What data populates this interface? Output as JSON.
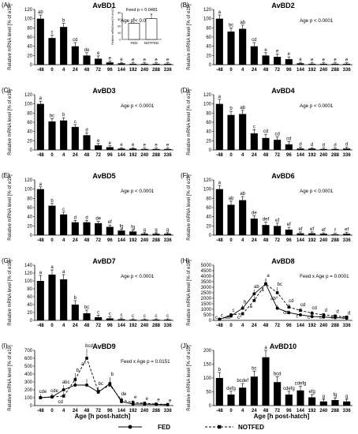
{
  "figure": {
    "x_axis_label": "Age [h post-hatch]",
    "legend": {
      "fed": "FED",
      "notfed": "NOTFED"
    }
  },
  "chart_data": [
    {
      "type": "bar",
      "panel_label": "(A)",
      "title": "AvBD1",
      "ylabel": "Relative mRNA level [% of e19]",
      "ylim": [
        0,
        120
      ],
      "yticks": [
        "0",
        "20",
        "40",
        "60",
        "80",
        "100",
        "120"
      ],
      "categories": [
        "-48",
        "0",
        "4",
        "24",
        "48",
        "72",
        "96",
        "144",
        "192",
        "240",
        "288",
        "336"
      ],
      "values": [
        100,
        58,
        82,
        40,
        20,
        13,
        5,
        3,
        2,
        2,
        2,
        2
      ],
      "errors": [
        8,
        6,
        8,
        8,
        6,
        6,
        3,
        2,
        2,
        2,
        2,
        2
      ],
      "letters": [
        "ab",
        "c",
        "b",
        "cd",
        "de",
        "e",
        "e",
        "e",
        "e",
        "e",
        "e",
        "e"
      ],
      "stat": "Age p < 0.0001",
      "inset": {
        "type": "bar",
        "title": "Feed p < 0.0481",
        "ylabel": "Relative mRNA level [% of e19]",
        "ylim": [
          0,
          40
        ],
        "yticks": [
          "0",
          "10",
          "20",
          "30",
          "40"
        ],
        "categories": [
          "FED",
          "NOTFED"
        ],
        "values": [
          24,
          31
        ],
        "errors": [
          3,
          4
        ],
        "letters": [
          "b",
          "a"
        ]
      }
    },
    {
      "type": "bar",
      "panel_label": "(B)",
      "title": "AvBD2",
      "ylabel": "Relative mRNA level [% of e19]",
      "ylim": [
        0,
        120
      ],
      "yticks": [
        "0",
        "20",
        "40",
        "60",
        "80",
        "100",
        "120"
      ],
      "categories": [
        "-48",
        "0",
        "4",
        "24",
        "48",
        "72",
        "96",
        "144",
        "192",
        "240",
        "288",
        "336"
      ],
      "values": [
        100,
        72,
        78,
        40,
        20,
        17,
        12,
        3,
        2,
        2,
        2,
        2
      ],
      "errors": [
        8,
        8,
        8,
        8,
        6,
        6,
        5,
        2,
        2,
        2,
        2,
        2
      ],
      "letters": [
        "a",
        "bc",
        "ab",
        "cd",
        "e",
        "e",
        "e",
        "e",
        "e",
        "e",
        "e",
        "e"
      ],
      "stat": "Age p < 0.0001"
    },
    {
      "type": "bar",
      "panel_label": "(C)",
      "title": "AvBD3",
      "ylabel": "Relative mRNA level [% of e19]",
      "ylim": [
        0,
        120
      ],
      "yticks": [
        "0",
        "20",
        "40",
        "60",
        "80",
        "100",
        "120"
      ],
      "categories": [
        "-48",
        "0",
        "4",
        "24",
        "48",
        "72",
        "96",
        "144",
        "192",
        "240",
        "288",
        "336"
      ],
      "values": [
        100,
        62,
        64,
        50,
        32,
        10,
        6,
        3,
        3,
        2,
        2,
        2
      ],
      "errors": [
        6,
        6,
        6,
        5,
        5,
        4,
        3,
        2,
        2,
        2,
        2,
        2
      ],
      "letters": [
        "a",
        "bc",
        "b",
        "c",
        "d",
        "e",
        "e",
        "e",
        "e",
        "e",
        "e",
        "e"
      ],
      "stat": "Age p < 0.0001"
    },
    {
      "type": "bar",
      "panel_label": "(D)",
      "title": "AvBD4",
      "ylabel": "Relative mRNA level [% of e19]",
      "ylim": [
        0,
        120
      ],
      "yticks": [
        "0",
        "20",
        "40",
        "60",
        "80",
        "100",
        "120"
      ],
      "categories": [
        "-48",
        "0",
        "4",
        "24",
        "48",
        "72",
        "96",
        "144",
        "192",
        "240",
        "288",
        "336"
      ],
      "values": [
        100,
        76,
        78,
        36,
        26,
        22,
        12,
        3,
        3,
        2,
        2,
        3
      ],
      "errors": [
        10,
        8,
        8,
        8,
        8,
        6,
        6,
        3,
        2,
        2,
        2,
        3
      ],
      "letters": [
        "a",
        "b",
        "ab",
        "c",
        "cd",
        "cd",
        "cd",
        "d",
        "d",
        "d",
        "d",
        "d"
      ],
      "stat": "Age p < 0.0001"
    },
    {
      "type": "bar",
      "panel_label": "(E)",
      "title": "AvBD5",
      "ylabel": "Relative mRNA level [% of e19]",
      "ylim": [
        0,
        120
      ],
      "yticks": [
        "0",
        "20",
        "40",
        "60",
        "80",
        "100",
        "120"
      ],
      "categories": [
        "-48",
        "0",
        "4",
        "24",
        "48",
        "72",
        "96",
        "144",
        "192",
        "240",
        "288",
        "336"
      ],
      "values": [
        100,
        64,
        45,
        28,
        28,
        26,
        18,
        10,
        8,
        3,
        3,
        3
      ],
      "errors": [
        5,
        5,
        5,
        4,
        4,
        4,
        4,
        3,
        3,
        2,
        2,
        2
      ],
      "letters": [
        "a",
        "b",
        "c",
        "d",
        "d",
        "de",
        "ef",
        "fg",
        "fg",
        "g",
        "g",
        "g"
      ],
      "stat": "Age p < 0.0001"
    },
    {
      "type": "bar",
      "panel_label": "(F)",
      "title": "AvBD6",
      "ylabel": "Relative mRNA level [% of e19]",
      "ylim": [
        0,
        120
      ],
      "yticks": [
        "0",
        "20",
        "40",
        "60",
        "80",
        "100",
        "120"
      ],
      "categories": [
        "-48",
        "0",
        "4",
        "24",
        "48",
        "72",
        "96",
        "144",
        "192",
        "240",
        "288",
        "336"
      ],
      "values": [
        100,
        66,
        76,
        36,
        22,
        20,
        12,
        4,
        4,
        3,
        2,
        3
      ],
      "errors": [
        8,
        8,
        8,
        6,
        6,
        6,
        5,
        3,
        3,
        2,
        2,
        3
      ],
      "letters": [
        "a",
        "ab",
        "ab",
        "de",
        "def",
        "ef",
        "ef",
        "ef",
        "ef",
        "ef",
        "f",
        "ef"
      ],
      "stat": "Age p < 0.0001"
    },
    {
      "type": "bar",
      "panel_label": "(G)",
      "title": "AvBD7",
      "ylabel": "Relative mRNA level [% of e19]",
      "ylim": [
        0,
        140
      ],
      "yticks": [
        "0",
        "20",
        "40",
        "60",
        "80",
        "100",
        "120",
        "140"
      ],
      "categories": [
        "-48",
        "0",
        "4",
        "24",
        "48",
        "72",
        "96",
        "144",
        "192",
        "240",
        "288",
        "336"
      ],
      "values": [
        100,
        116,
        104,
        40,
        18,
        8,
        5,
        3,
        2,
        2,
        2,
        2
      ],
      "errors": [
        14,
        12,
        12,
        10,
        8,
        5,
        4,
        3,
        2,
        2,
        2,
        2
      ],
      "letters": [
        "a",
        "a",
        "a",
        "b",
        "bc",
        "c",
        "c",
        "c",
        "c",
        "c",
        "c",
        "c"
      ],
      "stat": "Age p < 0.0001"
    },
    {
      "type": "line",
      "panel_label": "(H)",
      "title": "AvBD8",
      "ylabel": "Relative mRNA level [% of e19]",
      "ylim": [
        0,
        5000
      ],
      "yticks": [
        "0",
        "500",
        "1000",
        "1500",
        "2000",
        "2500",
        "3000",
        "3500",
        "4000",
        "4500",
        "5000"
      ],
      "categories": [
        "-48",
        "0",
        "4",
        "24",
        "48",
        "72",
        "96",
        "144",
        "192",
        "240",
        "288",
        "336"
      ],
      "series": [
        {
          "name": "FED",
          "values": [
            100,
            400,
            1100,
            2400,
            3300,
            1100,
            700,
            500,
            350,
            300,
            250,
            200
          ],
          "errors": [
            80,
            150,
            300,
            400,
            500,
            300,
            200,
            150,
            100,
            100,
            80,
            80
          ]
        },
        {
          "name": "NOTFED",
          "values": [
            100,
            500,
            600,
            1800,
            3300,
            2500,
            1200,
            900,
            650,
            500,
            400,
            300
          ],
          "errors": [
            80,
            150,
            200,
            400,
            500,
            500,
            300,
            250,
            200,
            150,
            120,
            100
          ]
        }
      ],
      "letters_fed": [
        "c",
        "c",
        "b",
        "ab",
        "a",
        "bc",
        "cd",
        "cd",
        "cd",
        "d",
        "d",
        "d"
      ],
      "letters_notfed": [
        "c",
        "cd",
        "c*",
        "a",
        "a",
        "ab*",
        "cd",
        "c",
        "c",
        "c",
        "c",
        "c"
      ],
      "stat": "Feed x Age p = 0.0001"
    },
    {
      "type": "line",
      "panel_label": "(I)",
      "title": "AvBD9",
      "ylabel": "Relative mRNA level [% of e19]",
      "ylim": [
        0,
        700
      ],
      "yticks": [
        "0",
        "100",
        "200",
        "300",
        "400",
        "500",
        "600",
        "700"
      ],
      "categories": [
        "-48",
        "0",
        "4",
        "24",
        "48",
        "72",
        "96",
        "144",
        "192",
        "240",
        "288",
        "336"
      ],
      "series": [
        {
          "name": "FED",
          "values": [
            100,
            110,
            200,
            260,
            260,
            170,
            280,
            50,
            20,
            20,
            15,
            10
          ],
          "errors": [
            40,
            40,
            60,
            60,
            80,
            50,
            80,
            30,
            20,
            20,
            15,
            10
          ]
        },
        {
          "name": "NOTFED",
          "values": [
            100,
            110,
            120,
            330,
            600,
            180,
            260,
            70,
            40,
            30,
            20,
            15
          ],
          "errors": [
            40,
            40,
            50,
            80,
            120,
            60,
            80,
            40,
            30,
            20,
            15,
            10
          ]
        }
      ],
      "letters_fed": [
        "cde",
        "cde",
        "abc",
        "b",
        "bcd",
        "bc",
        "b",
        "de",
        "e",
        "e",
        "e",
        "e"
      ],
      "letters_notfed": [
        "",
        "",
        "cd",
        "",
        "a*",
        "",
        "",
        "",
        "",
        "",
        "",
        ""
      ],
      "stat": "Feed x Age p = 0.0151"
    },
    {
      "type": "bar",
      "panel_label": "(J)",
      "title": "AvBD10",
      "ylabel": "Relative mRNA level [% of e19]",
      "ylim": [
        0,
        200
      ],
      "yticks": [
        "0",
        "50",
        "100",
        "150",
        "200"
      ],
      "categories": [
        "-48",
        "0",
        "4",
        "24",
        "48",
        "72",
        "96",
        "144",
        "192",
        "240",
        "288",
        "336"
      ],
      "values": [
        100,
        40,
        65,
        105,
        175,
        85,
        40,
        55,
        30,
        15,
        20,
        15
      ],
      "errors": [
        20,
        12,
        15,
        20,
        25,
        20,
        12,
        15,
        10,
        8,
        8,
        8
      ],
      "letters": [
        "b",
        "defg",
        "bcdef",
        "bc",
        "a",
        "bcd",
        "cdefg",
        "cdefg",
        "efg",
        "g",
        "fg",
        "g"
      ],
      "stat": ""
    }
  ]
}
